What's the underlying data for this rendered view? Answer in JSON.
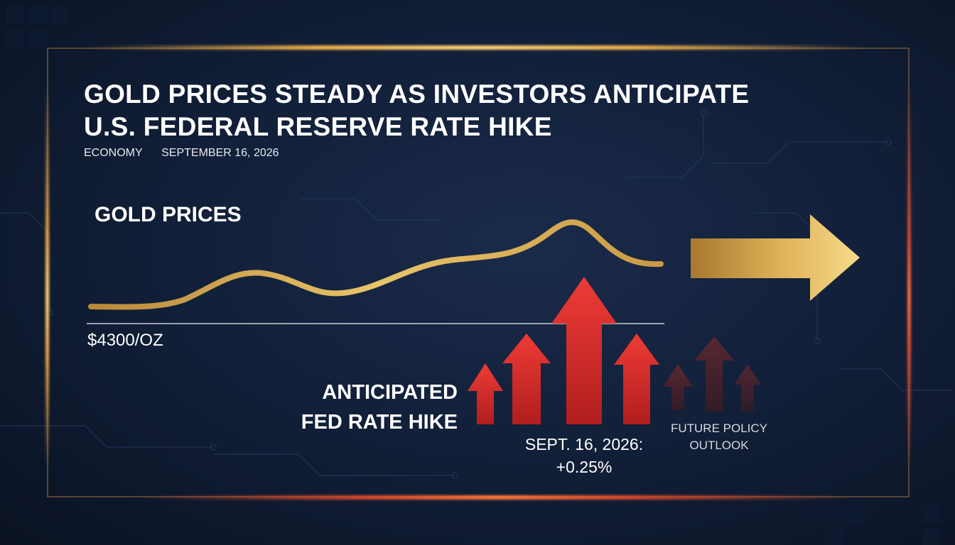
{
  "headline": {
    "line1": "GOLD PRICES STEADY AS INVESTORS ANTICIPATE",
    "line2": "U.S. FEDERAL RESERVE RATE HIKE"
  },
  "meta": {
    "category": "ECONOMY",
    "date": "SEPTEMBER 16, 2026"
  },
  "gold_chart": {
    "label": "GOLD PRICES",
    "baseline_label": "$4300/OZ"
  },
  "rate_hike": {
    "label_line1": "ANTICIPATED",
    "label_line2": "FED RATE HIKE",
    "date_line1": "SEPT. 16, 2026:",
    "date_line2": "+0.25%",
    "future_line1": "FUTURE POLICY",
    "future_line2": "OUTLOOK"
  },
  "colors": {
    "gold": "#d8ab4e",
    "red": "#d9302c",
    "background": "#12203a"
  }
}
